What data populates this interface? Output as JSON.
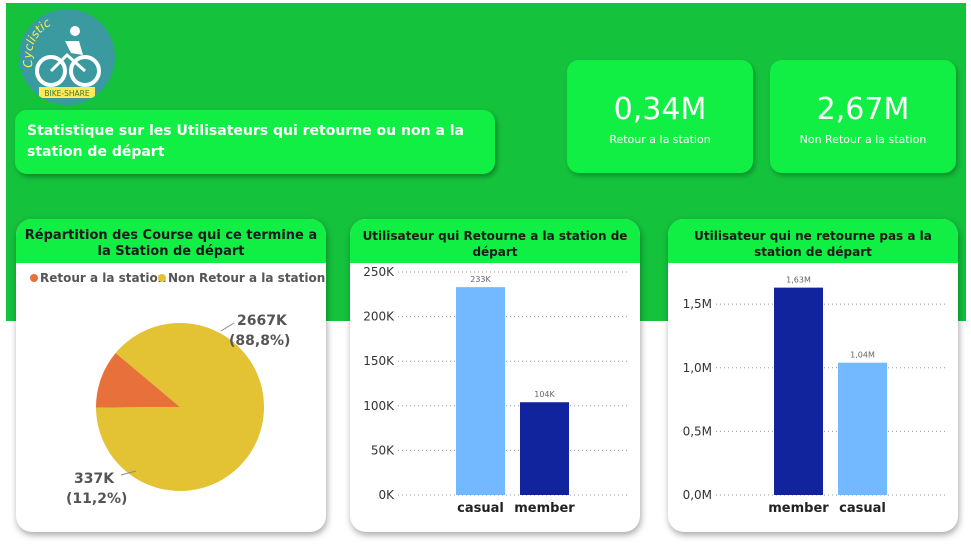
{
  "logo": {
    "brand": "Cyclistic",
    "tagline": "BIKE-SHARE"
  },
  "header": {
    "title": "Statistique sur les Utilisateurs qui retourne ou non a la station de départ"
  },
  "kpis": [
    {
      "value": "0,34M",
      "label": "Retour a la station"
    },
    {
      "value": "2,67M",
      "label": "Non Retour a la station"
    }
  ],
  "colors": {
    "green": "#12ef44",
    "retour": "#e8703a",
    "non_retour": "#e3c234",
    "casual": "#73b9ff",
    "member": "#12239e"
  },
  "chart_data": [
    {
      "type": "pie",
      "title": "Répartition des Course qui ce termine a la Station de départ",
      "legend_position": "top-left",
      "slices": [
        {
          "label": "Retour a la station",
          "value": 337,
          "value_label": "337K",
          "pct_label": "(11,2%)",
          "color": "#e8703a"
        },
        {
          "label": "Non Retour a la station",
          "value": 2667,
          "value_label": "2667K",
          "pct_label": "(88,8%)",
          "color": "#e3c234"
        }
      ]
    },
    {
      "type": "bar",
      "title": "Utilisateur qui Retourne a la station de départ",
      "categories": [
        "casual",
        "member"
      ],
      "values": [
        233000,
        104000
      ],
      "data_labels": [
        "233K",
        "104K"
      ],
      "colors": [
        "#73b9ff",
        "#12239e"
      ],
      "ylim": [
        0,
        250000
      ],
      "yticks": [
        0,
        50000,
        100000,
        150000,
        200000,
        250000
      ],
      "ytick_labels": [
        "0K",
        "50K",
        "100K",
        "150K",
        "200K",
        "250K"
      ],
      "grid": true
    },
    {
      "type": "bar",
      "title": "Utilisateur qui ne retourne pas a la station de départ",
      "categories": [
        "member",
        "casual"
      ],
      "values": [
        1630000,
        1040000
      ],
      "data_labels": [
        "1,63M",
        "1,04M"
      ],
      "colors": [
        "#12239e",
        "#73b9ff"
      ],
      "ylim": [
        0,
        1800000
      ],
      "yticks": [
        0,
        500000,
        1000000,
        1500000
      ],
      "ytick_labels": [
        "0,0M",
        "0,5M",
        "1,0M",
        "1,5M"
      ],
      "grid": true
    }
  ]
}
